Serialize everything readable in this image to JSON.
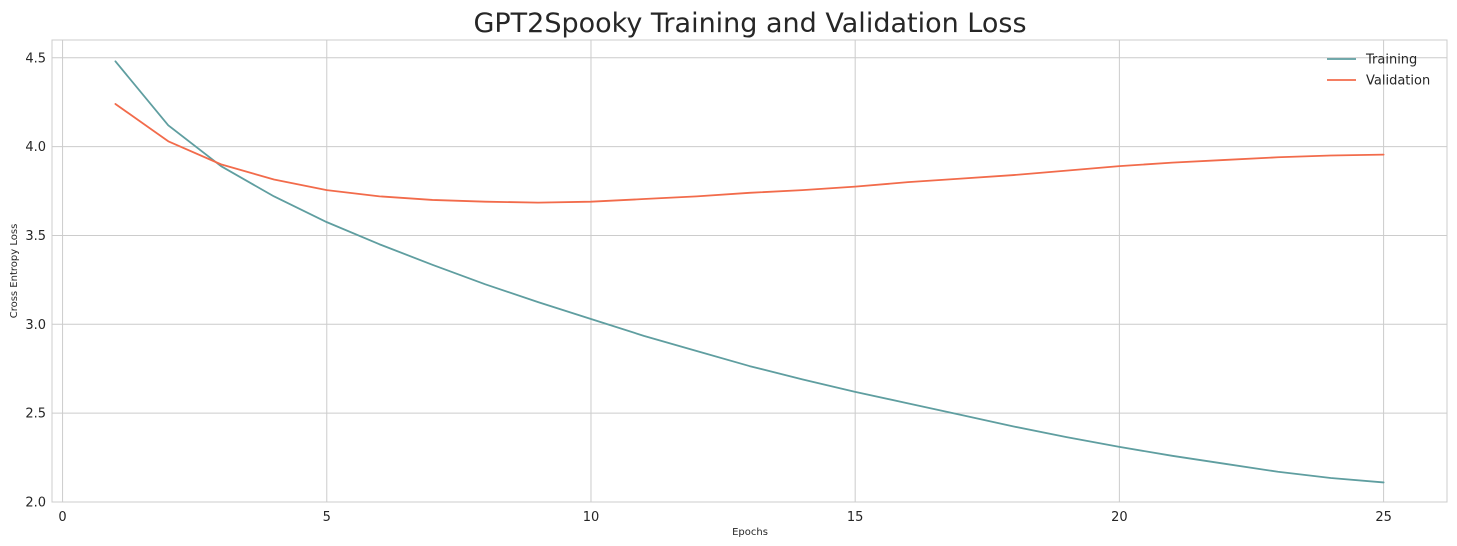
{
  "chart_data": {
    "type": "line",
    "title": "GPT2Spooky Training and Validation Loss",
    "xlabel": "Epochs",
    "ylabel": "Cross Entropy Loss",
    "xlim": [
      -0.2,
      26.2
    ],
    "ylim": [
      2.0,
      4.6
    ],
    "xticks": [
      0,
      5,
      10,
      15,
      20,
      25
    ],
    "yticks": [
      2.0,
      2.5,
      3.0,
      3.5,
      4.0,
      4.5
    ],
    "xtick_labels": [
      "0",
      "5",
      "10",
      "15",
      "20",
      "25"
    ],
    "ytick_labels": [
      "2.0",
      "2.5",
      "3.0",
      "3.5",
      "4.0",
      "4.5"
    ],
    "grid": true,
    "legend_position": "top-right",
    "x": [
      1,
      2,
      3,
      4,
      5,
      6,
      7,
      8,
      9,
      10,
      11,
      12,
      13,
      14,
      15,
      16,
      17,
      18,
      19,
      20,
      21,
      22,
      23,
      24,
      25
    ],
    "series": [
      {
        "name": "Training",
        "color": "#5f9ea0",
        "values": [
          4.48,
          4.12,
          3.89,
          3.72,
          3.575,
          3.45,
          3.335,
          3.225,
          3.125,
          3.03,
          2.935,
          2.85,
          2.765,
          2.69,
          2.62,
          2.555,
          2.49,
          2.425,
          2.365,
          2.31,
          2.26,
          2.215,
          2.17,
          2.135,
          2.11
        ]
      },
      {
        "name": "Validation",
        "color": "#f26b4b",
        "values": [
          4.24,
          4.03,
          3.9,
          3.815,
          3.755,
          3.72,
          3.7,
          3.69,
          3.685,
          3.69,
          3.705,
          3.72,
          3.74,
          3.755,
          3.775,
          3.8,
          3.82,
          3.84,
          3.865,
          3.89,
          3.91,
          3.925,
          3.94,
          3.95,
          3.955
        ]
      }
    ]
  }
}
